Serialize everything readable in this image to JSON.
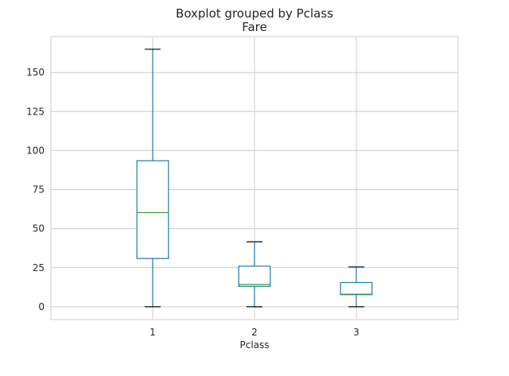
{
  "chart_data": {
    "type": "box",
    "suptitle": "Boxplot grouped by Pclass",
    "title": "Fare",
    "xlabel": "Pclass",
    "ylabel": "",
    "categories": [
      "1",
      "2",
      "3"
    ],
    "yticks": [
      0,
      25,
      50,
      75,
      100,
      125,
      150
    ],
    "ylim": [
      -8.2,
      173
    ],
    "grid": true,
    "colors": {
      "box": "#1f77b4",
      "median": "#2ca02c",
      "whisker_cap": "#000000",
      "grid": "#cccccc",
      "spine": "#cccccc"
    },
    "boxes": [
      {
        "category": "1",
        "whislo": 0,
        "q1": 30.9,
        "med": 60.3,
        "q3": 93.5,
        "whishi": 164.9
      },
      {
        "category": "2",
        "whislo": 0,
        "q1": 13.0,
        "med": 14.25,
        "q3": 26.0,
        "whishi": 41.6
      },
      {
        "category": "3",
        "whislo": 0,
        "q1": 7.75,
        "med": 8.05,
        "q3": 15.5,
        "whishi": 25.5
      }
    ]
  }
}
